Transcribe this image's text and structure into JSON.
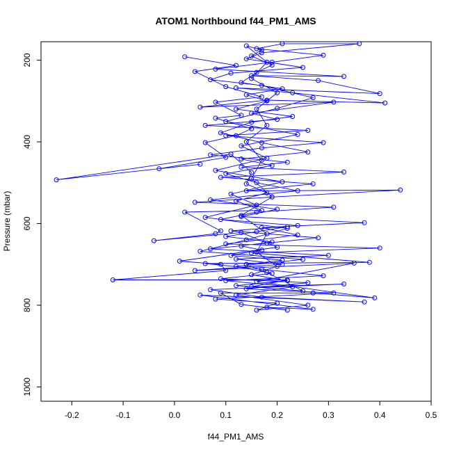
{
  "chart_data": {
    "type": "line",
    "title": "ATOM1 Northbound f44_PM1_AMS",
    "xlabel": "f44_PM1_AMS",
    "ylabel": "Pressure (mbar)",
    "xlim": [
      -0.26,
      0.5
    ],
    "ylim": [
      1035,
      155
    ],
    "y_inverted": true,
    "grid": false,
    "legend": "none",
    "x_ticks": [
      "-0.2",
      "-0.1",
      "0.0",
      "0.1",
      "0.2",
      "0.3",
      "0.4",
      "0.5"
    ],
    "y_ticks": [
      "200",
      "400",
      "600",
      "800",
      "1000"
    ],
    "series": [
      {
        "color": "#0000ff",
        "marker": "open-circle",
        "points": [
          [
            0.02,
            192
          ],
          [
            0.12,
            213
          ],
          [
            0.04,
            228
          ],
          [
            0.1,
            265
          ],
          [
            0.17,
            290
          ],
          [
            0.08,
            303
          ],
          [
            0.13,
            335
          ],
          [
            0.08,
            342
          ],
          [
            0.15,
            368
          ],
          [
            0.12,
            385
          ],
          [
            0.06,
            402
          ],
          [
            0.1,
            438
          ],
          [
            -0.03,
            466
          ],
          [
            0.05,
            455
          ],
          [
            -0.23,
            493
          ],
          [
            0.11,
            430
          ],
          [
            0.15,
            475
          ],
          [
            0.14,
            503
          ],
          [
            0.18,
            525
          ],
          [
            0.12,
            545
          ],
          [
            0.17,
            568
          ],
          [
            0.02,
            572
          ],
          [
            0.09,
            618
          ],
          [
            0.08,
            625
          ],
          [
            -0.04,
            642
          ],
          [
            0.13,
            622
          ],
          [
            0.2,
            658
          ],
          [
            0.01,
            692
          ],
          [
            0.09,
            700
          ],
          [
            0.1,
            715
          ],
          [
            -0.12,
            738
          ],
          [
            0.22,
            738
          ],
          [
            0.15,
            755
          ],
          [
            0.33,
            748
          ],
          [
            0.07,
            762
          ],
          [
            0.17,
            780
          ],
          [
            0.37,
            792
          ],
          [
            0.05,
            775
          ],
          [
            0.27,
            810
          ],
          [
            0.18,
            805
          ],
          [
            0.22,
            812
          ],
          [
            0.13,
            798
          ],
          [
            0.09,
            770
          ],
          [
            0.27,
            770
          ],
          [
            0.39,
            782
          ],
          [
            0.16,
            742
          ],
          [
            0.35,
            697
          ],
          [
            0.04,
            715
          ],
          [
            0.21,
            700
          ],
          [
            0.12,
            687
          ],
          [
            0.3,
            678
          ],
          [
            0.07,
            662
          ],
          [
            0.18,
            648
          ],
          [
            0.28,
            635
          ],
          [
            0.11,
            618
          ],
          [
            0.24,
            605
          ],
          [
            0.09,
            590
          ],
          [
            0.16,
            572
          ],
          [
            0.31,
            560
          ],
          [
            0.04,
            548
          ],
          [
            0.19,
            535
          ],
          [
            0.44,
            518
          ],
          [
            0.14,
            520
          ],
          [
            0.27,
            503
          ],
          [
            0.09,
            487
          ],
          [
            0.33,
            474
          ],
          [
            0.13,
            462
          ],
          [
            0.22,
            450
          ],
          [
            0.07,
            432
          ],
          [
            0.17,
            415
          ],
          [
            0.29,
            402
          ],
          [
            0.1,
            385
          ],
          [
            0.26,
            372
          ],
          [
            0.06,
            360
          ],
          [
            0.2,
            345
          ],
          [
            0.15,
            330
          ],
          [
            0.31,
            303
          ],
          [
            0.05,
            315
          ],
          [
            0.18,
            298
          ],
          [
            0.41,
            305
          ],
          [
            0.23,
            280
          ],
          [
            0.12,
            268
          ],
          [
            0.4,
            282
          ],
          [
            0.28,
            250
          ],
          [
            0.15,
            238
          ],
          [
            0.33,
            240
          ],
          [
            0.08,
            222
          ],
          [
            0.19,
            205
          ],
          [
            0.29,
            188
          ],
          [
            0.16,
            172
          ],
          [
            0.21,
            160
          ],
          [
            0.36,
            160
          ],
          [
            0.17,
            182
          ],
          [
            0.14,
            197
          ],
          [
            0.25,
            218
          ],
          [
            0.11,
            232
          ],
          [
            0.07,
            248
          ],
          [
            0.17,
            262
          ],
          [
            0.27,
            292
          ],
          [
            0.2,
            318
          ],
          [
            0.1,
            350
          ],
          [
            0.24,
            382
          ],
          [
            0.13,
            410
          ],
          [
            0.18,
            440
          ],
          [
            0.08,
            470
          ],
          [
            0.21,
            498
          ],
          [
            0.11,
            528
          ],
          [
            0.16,
            555
          ],
          [
            0.06,
            585
          ],
          [
            0.22,
            612
          ],
          [
            0.14,
            640
          ],
          [
            0.05,
            668
          ],
          [
            0.25,
            688
          ],
          [
            0.12,
            705
          ],
          [
            0.19,
            722
          ],
          [
            0.09,
            735
          ],
          [
            0.26,
            745
          ],
          [
            0.14,
            760
          ],
          [
            0.31,
            770
          ],
          [
            0.08,
            785
          ],
          [
            0.2,
            795
          ],
          [
            0.16,
            812
          ],
          [
            0.26,
            800
          ],
          [
            0.12,
            775
          ],
          [
            0.23,
            755
          ],
          [
            0.1,
            740
          ],
          [
            0.29,
            728
          ],
          [
            0.17,
            712
          ],
          [
            0.06,
            698
          ],
          [
            0.38,
            695
          ],
          [
            0.15,
            672
          ],
          [
            0.4,
            660
          ],
          [
            0.1,
            650
          ],
          [
            0.24,
            628
          ],
          [
            0.17,
            610
          ],
          [
            0.37,
            598
          ],
          [
            0.13,
            583
          ],
          [
            0.2,
            565
          ],
          [
            0.07,
            542
          ],
          [
            0.24,
            520
          ],
          [
            0.16,
            500
          ],
          [
            0.1,
            478
          ],
          [
            0.19,
            458
          ],
          [
            0.13,
            442
          ],
          [
            0.26,
            425
          ],
          [
            0.17,
            402
          ],
          [
            0.09,
            378
          ],
          [
            0.15,
            352
          ],
          [
            0.23,
            338
          ],
          [
            0.12,
            320
          ],
          [
            0.18,
            300
          ],
          [
            0.14,
            285
          ],
          [
            0.21,
            270
          ],
          [
            0.13,
            255
          ],
          [
            0.16,
            230
          ],
          [
            0.19,
            212
          ],
          [
            0.15,
            190
          ],
          [
            0.17,
            175
          ],
          [
            0.14,
            165
          ],
          [
            0.18,
            205
          ],
          [
            0.15,
            245
          ],
          [
            0.2,
            280
          ],
          [
            0.16,
            320
          ],
          [
            0.18,
            360
          ],
          [
            0.14,
            400
          ],
          [
            0.17,
            445
          ],
          [
            0.15,
            490
          ],
          [
            0.19,
            535
          ],
          [
            0.13,
            580
          ],
          [
            0.18,
            625
          ],
          [
            0.16,
            670
          ],
          [
            0.2,
            705
          ],
          [
            0.15,
            725
          ],
          [
            0.22,
            740
          ],
          [
            0.12,
            752
          ],
          [
            0.25,
            765
          ],
          [
            0.18,
            720
          ],
          [
            0.14,
            700
          ],
          [
            0.21,
            690
          ],
          [
            0.11,
            678
          ],
          [
            0.17,
            665
          ],
          [
            0.13,
            655
          ],
          [
            0.19,
            645
          ],
          [
            0.1,
            632
          ],
          [
            0.16,
            620
          ],
          [
            0.22,
            608
          ]
        ]
      }
    ]
  }
}
